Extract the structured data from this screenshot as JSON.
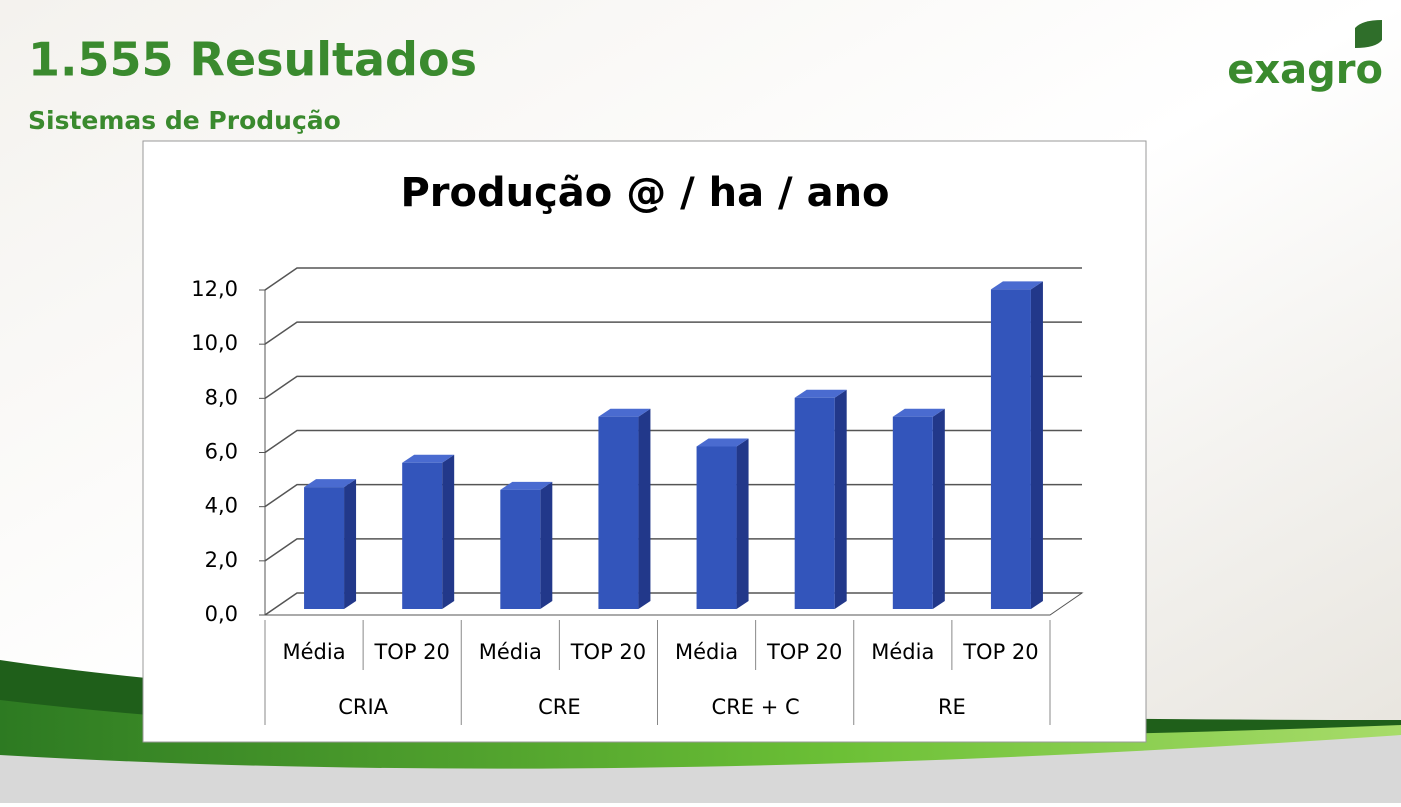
{
  "slide": {
    "title": "1.555 Resultados",
    "subtitle": "Sistemas de Produção",
    "logo": "exagro"
  },
  "chart_data": {
    "type": "bar3d",
    "title": "Produção @ / ha / ano",
    "categories": [
      "Média",
      "TOP 20",
      "Média",
      "TOP 20",
      "Média",
      "TOP 20",
      "Média",
      "TOP 20"
    ],
    "groups": [
      "CRIA",
      "CRE",
      "CRE + C",
      "RE"
    ],
    "values": [
      4.5,
      5.4,
      4.4,
      7.1,
      6.0,
      7.8,
      7.1,
      11.8
    ],
    "color": "#3355bb",
    "ylim": [
      0,
      12
    ],
    "yticks": [
      {
        "value": 0,
        "label": "0,0"
      },
      {
        "value": 2,
        "label": "2,0"
      },
      {
        "value": 4,
        "label": "4,0"
      },
      {
        "value": 6,
        "label": "6,0"
      },
      {
        "value": 8,
        "label": "8,0"
      },
      {
        "value": 10,
        "label": "10,0"
      },
      {
        "value": 12,
        "label": "12,0"
      }
    ],
    "grid": true
  }
}
